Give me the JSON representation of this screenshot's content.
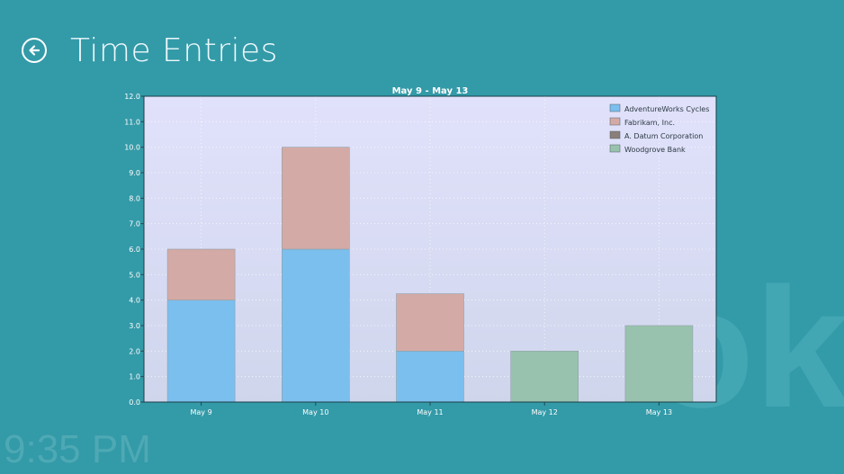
{
  "header": {
    "title": "Time Entries",
    "back_icon": "back-arrow-icon"
  },
  "watermark": "ok",
  "clock": "9:35 PM",
  "colors": {
    "page_bg": "#339aa8",
    "plot_top": "#e1e1fb",
    "plot_bottom": "#cfd6ec",
    "adventureworks": "#7bbfee",
    "fabrikam": "#d4aaa6",
    "woodgrove": "#98c2ad"
  },
  "chart_data": {
    "type": "bar",
    "stacked": true,
    "title": "May 9 - May 13",
    "categories": [
      "May 9",
      "May 10",
      "May 11",
      "May 12",
      "May 13"
    ],
    "series": [
      {
        "name": "AdventureWorks Cycles",
        "values": [
          4,
          6,
          2,
          0,
          0
        ],
        "color": "#7bbfee"
      },
      {
        "name": "Fabrikam, Inc.",
        "values": [
          2,
          4,
          2.25,
          0,
          0
        ],
        "color": "#d4aaa6"
      },
      {
        "name": "A. Datum Corporation",
        "values": [
          0,
          0,
          0,
          0,
          0
        ],
        "color": "#8a7f78"
      },
      {
        "name": "Woodgrove Bank",
        "values": [
          0,
          0,
          0,
          2,
          3
        ],
        "color": "#98c2ad"
      }
    ],
    "ylim": [
      0,
      12
    ],
    "yticks": [
      "0.0",
      "1.0",
      "2.0",
      "3.0",
      "4.0",
      "5.0",
      "6.0",
      "7.0",
      "8.0",
      "9.0",
      "10.0",
      "11.0",
      "12.0"
    ],
    "grid": true,
    "legend": "top-right"
  }
}
